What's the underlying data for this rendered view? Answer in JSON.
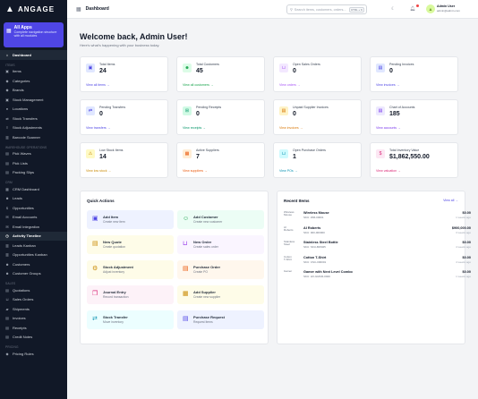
{
  "brand": {
    "name": "ANGAGE"
  },
  "apps_card": {
    "title": "All Apps",
    "subtitle": "Complete navigation structure with all modules"
  },
  "sidebar": {
    "sections": [
      {
        "heading": "",
        "items": [
          {
            "label": "Dashboard",
            "icon": "home-icon",
            "active": true
          }
        ]
      },
      {
        "heading": "ITEMS",
        "items": [
          {
            "label": "Items",
            "icon": "box-icon"
          },
          {
            "label": "Categories",
            "icon": "tag-icon"
          },
          {
            "label": "Brands",
            "icon": "tag-icon"
          },
          {
            "label": "Stock Management",
            "icon": "box-icon"
          },
          {
            "label": "Locations",
            "icon": "pin-icon"
          },
          {
            "label": "Stock Transfers",
            "icon": "swap-icon"
          },
          {
            "label": "Stock Adjustments",
            "icon": "slider-icon"
          },
          {
            "label": "Barcode Scanner",
            "icon": "barcode-icon"
          }
        ]
      },
      {
        "heading": "WAREHOUSE OPERATIONS",
        "items": [
          {
            "label": "Pick Waves",
            "icon": "doc-icon"
          },
          {
            "label": "Pick Lists",
            "icon": "doc-icon"
          },
          {
            "label": "Packing Slips",
            "icon": "doc-icon"
          }
        ]
      },
      {
        "heading": "CRM",
        "items": [
          {
            "label": "CRM Dashboard",
            "icon": "grid-icon"
          },
          {
            "label": "Leads",
            "icon": "users-icon"
          },
          {
            "label": "Opportunities",
            "icon": "dollar-icon"
          },
          {
            "label": "Email Accounts",
            "icon": "mail-icon"
          },
          {
            "label": "Email Integration",
            "icon": "mail-icon"
          },
          {
            "label": "Activity Timeline",
            "icon": "clock-icon",
            "active": true
          },
          {
            "label": "Leads Kanban",
            "icon": "kanban-icon"
          },
          {
            "label": "Opportunities Kanban",
            "icon": "kanban-icon"
          },
          {
            "label": "Customers",
            "icon": "users-icon"
          },
          {
            "label": "Customer Groups",
            "icon": "users-icon"
          }
        ]
      },
      {
        "heading": "SALES",
        "items": [
          {
            "label": "Quotations",
            "icon": "doc-icon"
          },
          {
            "label": "Sales Orders",
            "icon": "cart-icon"
          },
          {
            "label": "Shipments",
            "icon": "truck-icon"
          },
          {
            "label": "Invoices",
            "icon": "doc-icon"
          },
          {
            "label": "Receipts",
            "icon": "doc-icon"
          },
          {
            "label": "Credit Notes",
            "icon": "doc-icon"
          }
        ]
      },
      {
        "heading": "PRICING",
        "items": [
          {
            "label": "Pricing Rules",
            "icon": "tag-icon"
          }
        ]
      }
    ]
  },
  "header": {
    "title": "Dashboard",
    "search_placeholder": "Search items, customers, orders...",
    "search_shortcut": "CTRL + K",
    "user_name": "Admin User",
    "user_email": "admin@admin.com",
    "avatar_initials": "A"
  },
  "welcome": {
    "title": "Welcome back, Admin User!",
    "subtitle": "Here's what's happening with your business today."
  },
  "stats": [
    {
      "label": "Total Items",
      "value": "24",
      "link": "View all items →",
      "bg": "#e0e7ff",
      "fg": "#4f46e5",
      "link_color": "#4f46e5",
      "icon": "box-icon"
    },
    {
      "label": "Total Customers",
      "value": "45",
      "link": "View all customers →",
      "bg": "#dcfce7",
      "fg": "#16a34a",
      "link_color": "#16a34a",
      "icon": "users-icon"
    },
    {
      "label": "Open Sales Orders",
      "value": "0",
      "link": "View orders →",
      "bg": "#f3e8ff",
      "fg": "#a855f7",
      "link_color": "#a855f7",
      "icon": "cart-icon"
    },
    {
      "label": "Pending Invoices",
      "value": "0",
      "link": "View invoices →",
      "bg": "#e0e7ff",
      "fg": "#4f46e5",
      "link_color": "#4f46e5",
      "icon": "doc-icon"
    },
    {
      "label": "Pending Transfers",
      "value": "0",
      "link": "View transfers →",
      "bg": "#e0e7ff",
      "fg": "#4f46e5",
      "link_color": "#4f46e5",
      "icon": "swap-icon"
    },
    {
      "label": "Pending Receipts",
      "value": "0",
      "link": "View receipts →",
      "bg": "#d1fae5",
      "fg": "#059669",
      "link_color": "#059669",
      "icon": "receipt-icon"
    },
    {
      "label": "Unpaid Supplier Invoices",
      "value": "0",
      "link": "View invoices →",
      "bg": "#fef3c7",
      "fg": "#d97706",
      "link_color": "#d97706",
      "icon": "doc-icon"
    },
    {
      "label": "Chart of Accounts",
      "value": "185",
      "link": "View accounts →",
      "bg": "#ede9fe",
      "fg": "#7c3aed",
      "link_color": "#7c3aed",
      "icon": "chart-icon"
    },
    {
      "label": "Low Stock Items",
      "value": "14",
      "link": "View low stock →",
      "bg": "#fef9c3",
      "fg": "#ca8a04",
      "link_color": "#ca8a04",
      "icon": "warning-icon"
    },
    {
      "label": "Active Suppliers",
      "value": "7",
      "link": "View suppliers →",
      "bg": "#ffedd5",
      "fg": "#ea580c",
      "link_color": "#ea580c",
      "icon": "building-icon"
    },
    {
      "label": "Open Purchase Orders",
      "value": "1",
      "link": "View POs →",
      "bg": "#cffafe",
      "fg": "#0891b2",
      "link_color": "#0891b2",
      "icon": "cart-icon"
    },
    {
      "label": "Total Inventory Value",
      "value": "$1,862,550.00",
      "link": "View valuation →",
      "bg": "#fce7f3",
      "fg": "#db2777",
      "link_color": "#db2777",
      "icon": "dollar-icon"
    }
  ],
  "quick_actions": {
    "title": "Quick Actions",
    "items": [
      {
        "title": "Add Item",
        "subtitle": "Create new item",
        "bg": "#eef2ff",
        "fg": "#4f46e5",
        "icon": "box-icon"
      },
      {
        "title": "Add Customer",
        "subtitle": "Create new customer",
        "bg": "#ecfdf5",
        "fg": "#16a34a",
        "icon": "user-plus-icon"
      },
      {
        "title": "New Quote",
        "subtitle": "Create quotation",
        "bg": "#fefce8",
        "fg": "#ca8a04",
        "icon": "doc-icon"
      },
      {
        "title": "New Order",
        "subtitle": "Create sales order",
        "bg": "#faf5ff",
        "fg": "#9333ea",
        "icon": "cart-icon"
      },
      {
        "title": "Stock Adjustment",
        "subtitle": "Adjust inventory",
        "bg": "#fefce8",
        "fg": "#ca8a04",
        "icon": "gear-icon"
      },
      {
        "title": "Purchase Order",
        "subtitle": "Create PO",
        "bg": "#fff7ed",
        "fg": "#ea580c",
        "icon": "clipboard-icon"
      },
      {
        "title": "Journal Entry",
        "subtitle": "Record transaction",
        "bg": "#fdf2f8",
        "fg": "#db2777",
        "icon": "book-icon"
      },
      {
        "title": "Add Supplier",
        "subtitle": "Create new supplier",
        "bg": "#fefce8",
        "fg": "#ca8a04",
        "icon": "building-icon"
      },
      {
        "title": "Stock Transfer",
        "subtitle": "Move inventory",
        "bg": "#ecfeff",
        "fg": "#0891b2",
        "icon": "swap-icon"
      },
      {
        "title": "Purchase Request",
        "subtitle": "Request items",
        "bg": "#eef2ff",
        "fg": "#4f46e5",
        "icon": "doc-icon"
      }
    ]
  },
  "recent_items": {
    "title": "Recent Items",
    "view_all": "View all →",
    "items": [
      {
        "name": "Wireless Mouse",
        "sku": "SKU: WM-00001",
        "price": "$0.00",
        "time": "1 weeks ago",
        "img_alt": "Wireless Mouse"
      },
      {
        "name": "AI Roberts",
        "sku": "SKU: 000-000000",
        "price": "$900,000.00",
        "time": "3 weeks ago",
        "img_alt": "AI Roberts"
      },
      {
        "name": "Stainless Steel Bottle",
        "sku": "SKU: SKU-BW025",
        "price": "$0.00",
        "time": "4 weeks ago",
        "img_alt": "Stainless Steel"
      },
      {
        "name": "Cotton T-Shirt",
        "sku": "SKU: CSC-000001",
        "price": "$0.00",
        "time": "4 weeks ago",
        "img_alt": "Cotton T-Shirt"
      },
      {
        "name": "Gamer with Next Level Combo",
        "sku": "SKU: HX-GMCR-0020",
        "price": "$0.00",
        "time": "1 weeks ago",
        "img_alt": "Gamer"
      }
    ]
  }
}
